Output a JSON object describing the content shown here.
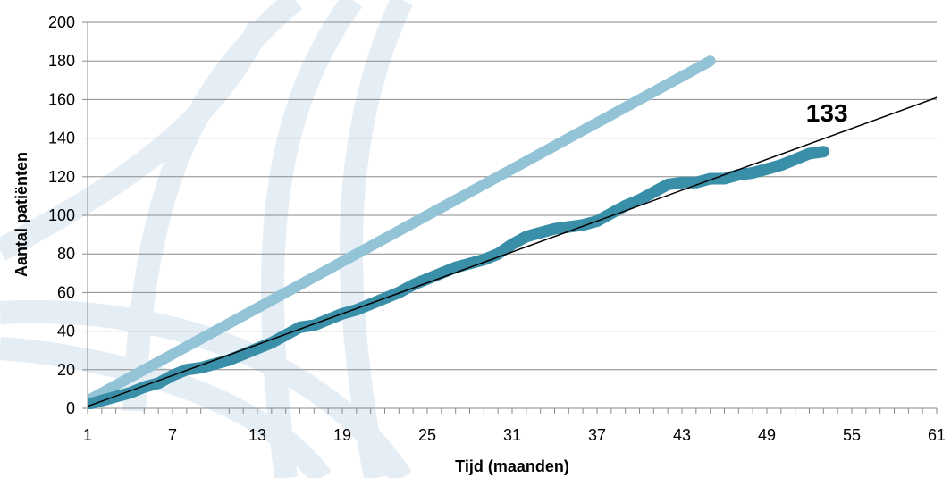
{
  "chart_data": {
    "type": "line",
    "title": "",
    "xlabel": "Tijd (maanden)",
    "ylabel": "Aantal patiënten",
    "xlim": [
      1,
      61
    ],
    "ylim": [
      0,
      200
    ],
    "x_ticks": [
      1,
      7,
      13,
      19,
      25,
      31,
      37,
      43,
      49,
      55,
      61
    ],
    "y_ticks": [
      0,
      20,
      40,
      60,
      80,
      100,
      120,
      140,
      160,
      180,
      200
    ],
    "grid": "horizontal",
    "legend": "none",
    "series": [
      {
        "color": "#93c3d6",
        "x": [
          1,
          45
        ],
        "y": [
          4,
          180
        ]
      },
      {
        "color": "#3a8fa8",
        "x": [
          1,
          2,
          3,
          4,
          5,
          6,
          7,
          8,
          9,
          10,
          11,
          12,
          13,
          14,
          15,
          16,
          17,
          18,
          19,
          20,
          21,
          22,
          23,
          24,
          25,
          26,
          27,
          28,
          29,
          30,
          31,
          32,
          33,
          34,
          35,
          36,
          37,
          38,
          39,
          40,
          41,
          42,
          43,
          44,
          45,
          46,
          47,
          48,
          49,
          50,
          51,
          52,
          53
        ],
        "y": [
          2,
          4,
          6,
          8,
          11,
          13,
          17,
          20,
          21,
          23,
          25,
          28,
          31,
          34,
          38,
          42,
          43,
          46,
          49,
          51,
          54,
          57,
          60,
          64,
          67,
          70,
          73,
          75,
          77,
          80,
          85,
          89,
          91,
          93,
          94,
          95,
          97,
          101,
          105,
          108,
          112,
          116,
          117,
          117,
          119,
          119,
          121,
          122,
          124,
          126,
          129,
          132,
          133
        ]
      },
      {
        "color": "#000000",
        "x": [
          1,
          61
        ],
        "y": [
          1,
          161
        ]
      }
    ],
    "annotations": [
      {
        "text": "133",
        "x": 54,
        "y": 144
      }
    ]
  }
}
